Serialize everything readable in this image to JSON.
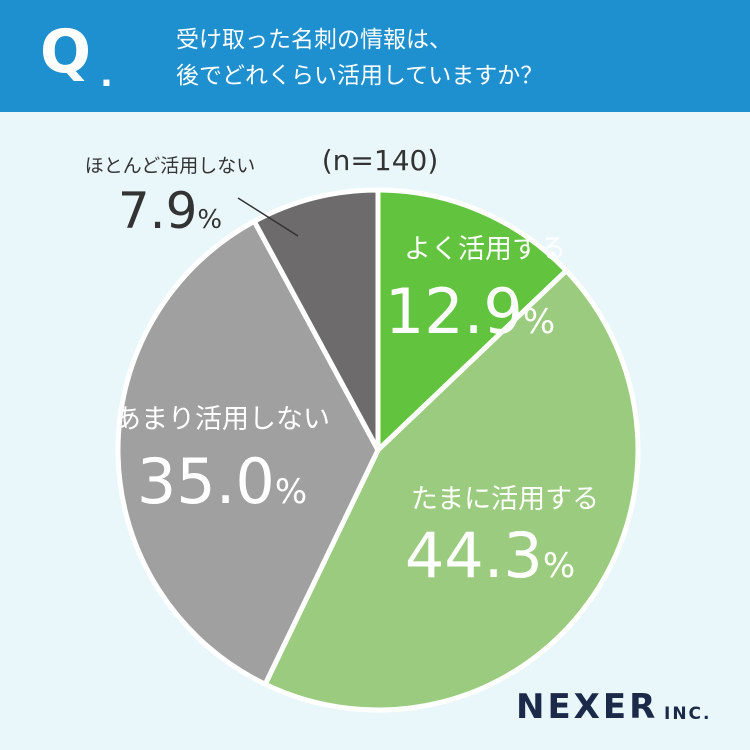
{
  "header": {
    "q_mark": "Q",
    "q_dot": ".",
    "question_line1": "受け取った名刺の情報は、",
    "question_line2": "後でどれくらい活用していますか？",
    "colors": {
      "header_bg": "#1e8fcf",
      "page_bg": "#e9f7fb"
    }
  },
  "chart_data": {
    "type": "pie",
    "sample_note": "(n=140)",
    "start": "12 o'clock",
    "direction": "clockwise",
    "slices": [
      {
        "label": "よく活用する",
        "value": 12.9,
        "value_text": "12.9",
        "unit": "%",
        "color": "#62c33e"
      },
      {
        "label": "たまに活用する",
        "value": 44.3,
        "value_text": "44.3",
        "unit": "%",
        "color": "#9acb7e"
      },
      {
        "label": "あまり活用しない",
        "value": 35.0,
        "value_text": "35.0",
        "unit": "%",
        "color": "#a0a0a0"
      },
      {
        "label": "ほとんど活用しない",
        "value": 7.9,
        "value_text": "7.9",
        "unit": "%",
        "color": "#6d6b6b"
      }
    ]
  },
  "brand": {
    "name": "NEXER",
    "suffix": "INC."
  }
}
